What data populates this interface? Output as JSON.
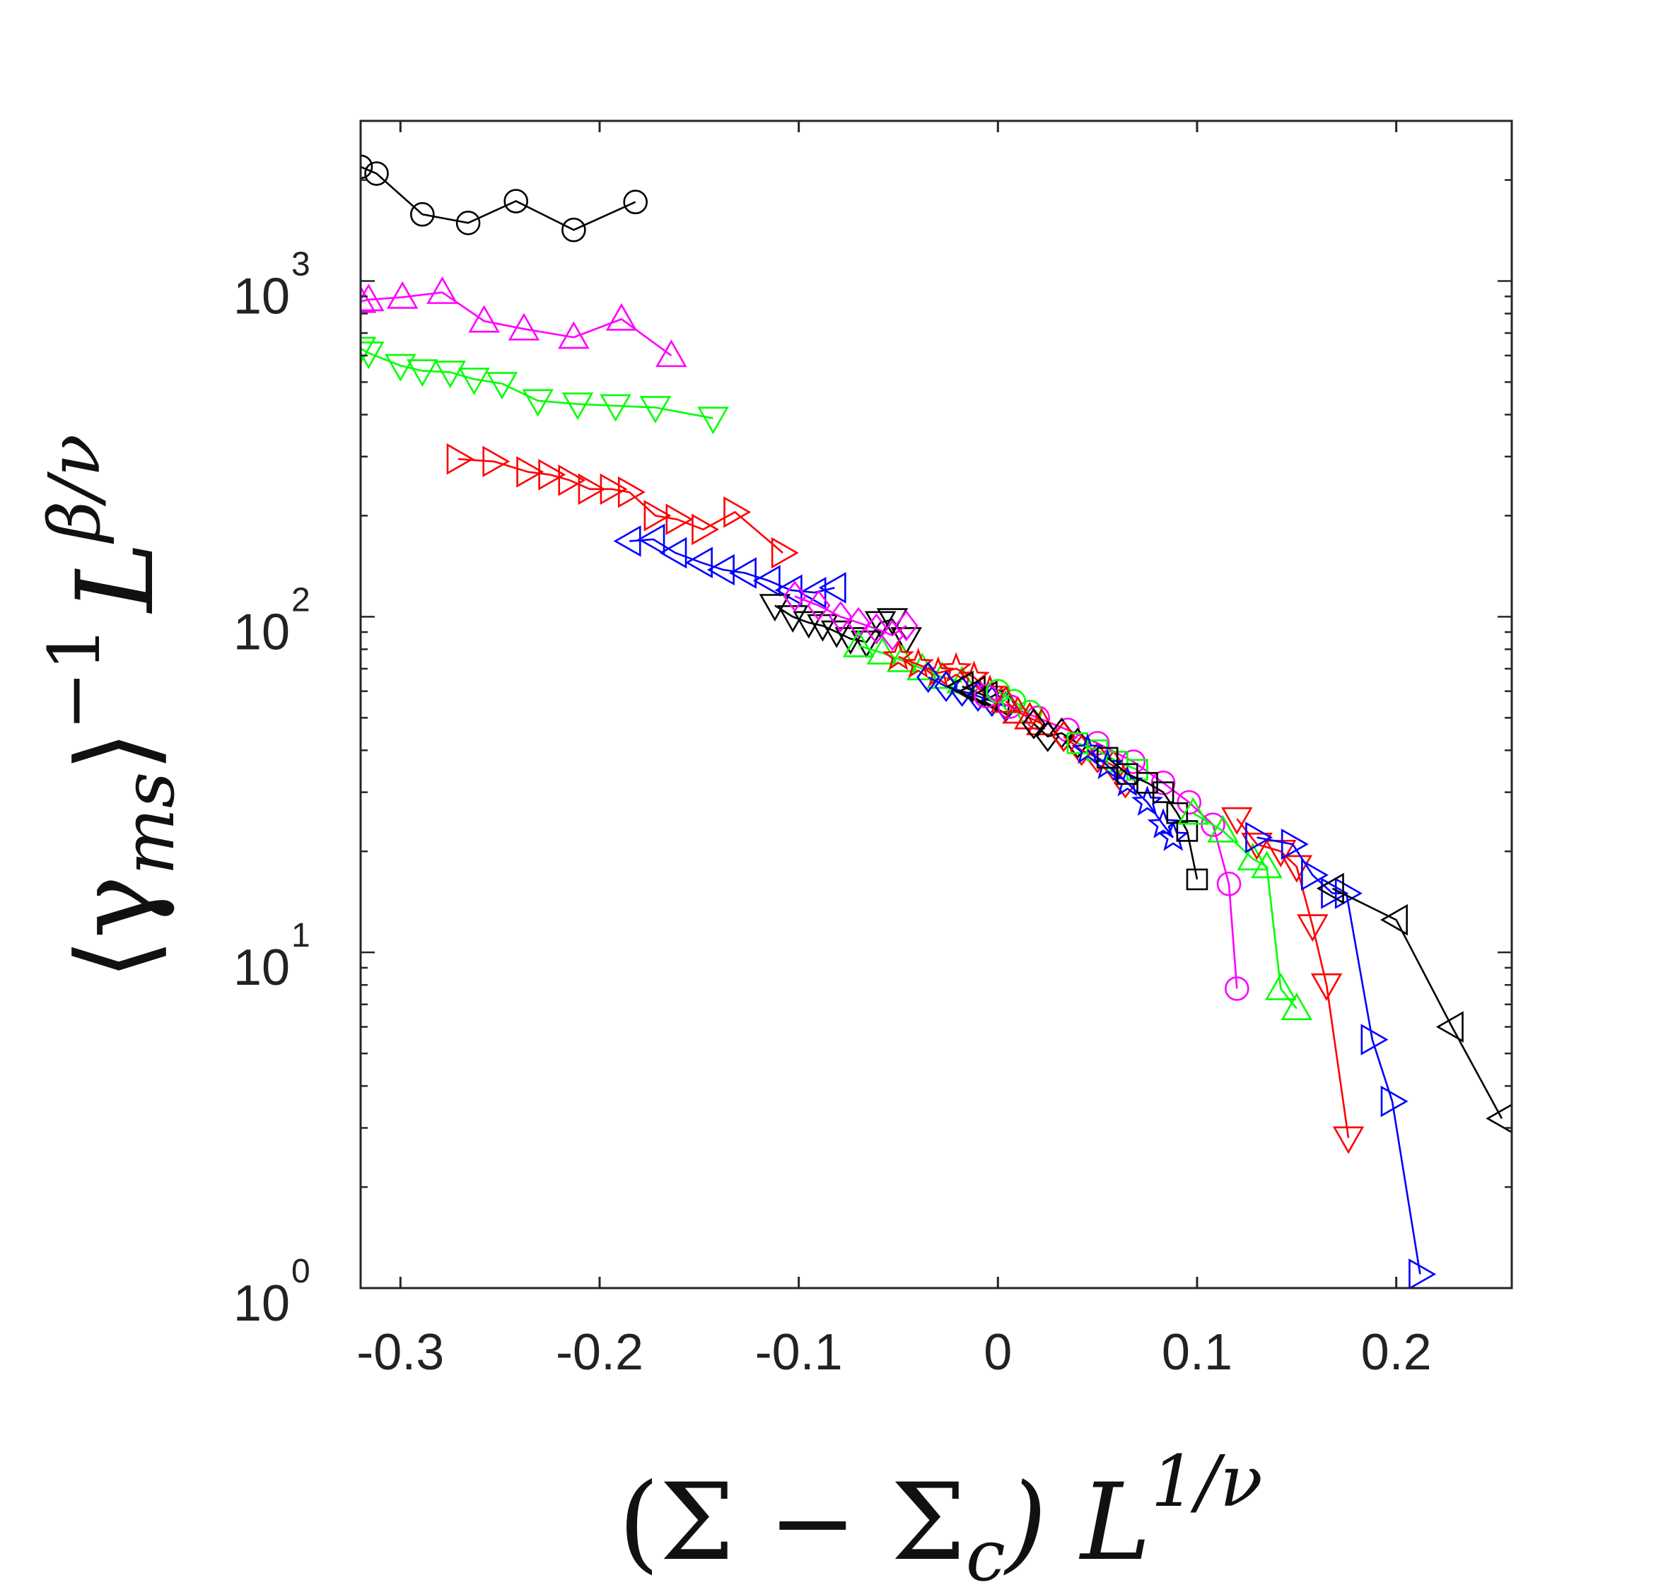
{
  "chart_data": {
    "type": "line",
    "title": "",
    "xlabel": {
      "main": "(Σ − Σ",
      "sub": "c",
      "close": ") L",
      "sup": "1/ν"
    },
    "ylabel": {
      "open": "⟨γ",
      "sub": "ms",
      "close": "⟩",
      "sup1": "−1",
      "L": "L",
      "sup2": "β/ν"
    },
    "xlim": [
      -0.32,
      0.258
    ],
    "ylim": [
      1,
      3000
    ],
    "yscale": "log",
    "grid": false,
    "legend": "none",
    "x_ticks": [
      -0.3,
      -0.2,
      -0.1,
      0,
      0.1,
      0.2
    ],
    "x_tick_labels": [
      "-0.3",
      "-0.2",
      "-0.1",
      "0",
      "0.1",
      "0.2"
    ],
    "y_ticks": [
      1,
      10,
      100,
      1000
    ],
    "y_tick_labels": [
      {
        "base": "10",
        "exp": "0"
      },
      {
        "base": "10",
        "exp": "1"
      },
      {
        "base": "10",
        "exp": "2"
      },
      {
        "base": "10",
        "exp": "3"
      }
    ],
    "series": [
      {
        "name": "black-circle",
        "color": "#000000",
        "marker": "circle",
        "x": [
          -0.32,
          -0.312,
          -0.289,
          -0.266,
          -0.242,
          -0.213,
          -0.182
        ],
        "y": [
          2190,
          2090,
          1580,
          1490,
          1730,
          1420,
          1720
        ]
      },
      {
        "name": "magenta-triangle-up",
        "color": "#ff00ff",
        "marker": "triangle-up",
        "x": [
          -0.32,
          -0.316,
          -0.299,
          -0.279,
          -0.258,
          -0.238,
          -0.213,
          -0.189,
          -0.164
        ],
        "y": [
          870,
          880,
          895,
          925,
          760,
          720,
          680,
          770,
          600
        ]
      },
      {
        "name": "green-triangle-down",
        "color": "#00ff00",
        "marker": "triangle-down",
        "x": [
          -0.32,
          -0.316,
          -0.3,
          -0.289,
          -0.275,
          -0.263,
          -0.249,
          -0.231,
          -0.211,
          -0.192,
          -0.172,
          -0.143
        ],
        "y": [
          630,
          610,
          560,
          540,
          535,
          510,
          495,
          440,
          430,
          425,
          420,
          390
        ]
      },
      {
        "name": "red-triangle-right",
        "color": "#ff0000",
        "marker": "triangle-right",
        "x": [
          -0.271,
          -0.253,
          -0.236,
          -0.225,
          -0.215,
          -0.205,
          -0.194,
          -0.185,
          -0.172,
          -0.161,
          -0.148,
          -0.132,
          -0.108
        ],
        "y": [
          295,
          290,
          270,
          265,
          255,
          240,
          240,
          235,
          200,
          195,
          182,
          205,
          155
        ]
      },
      {
        "name": "blue-triangle-left",
        "color": "#0000ff",
        "marker": "triangle-left",
        "x": [
          -0.185,
          -0.173,
          -0.162,
          -0.149,
          -0.138,
          -0.127,
          -0.115,
          -0.104,
          -0.092,
          -0.082
        ],
        "y": [
          168,
          170,
          155,
          145,
          138,
          135,
          128,
          120,
          118,
          122
        ]
      },
      {
        "name": "black-triangle-down",
        "color": "#000000",
        "marker": "triangle-down",
        "x": [
          -0.112,
          -0.103,
          -0.095,
          -0.088,
          -0.081,
          -0.074,
          -0.066,
          -0.059,
          -0.053,
          -0.046
        ],
        "y": [
          108,
          100,
          96,
          94,
          90,
          86,
          84,
          96,
          98,
          86
        ]
      },
      {
        "name": "magenta-diamond",
        "color": "#ff00ff",
        "marker": "diamond",
        "x": [
          -0.102,
          -0.09,
          -0.079,
          -0.07,
          -0.061,
          -0.053,
          -0.046
        ],
        "y": [
          115,
          108,
          100,
          96,
          92,
          88,
          94
        ]
      },
      {
        "name": "green-triangle-up",
        "color": "#00ff00",
        "marker": "triangle-up",
        "x": [
          -0.07,
          -0.058,
          -0.048,
          -0.038,
          -0.028,
          -0.018
        ],
        "y": [
          82,
          78,
          74,
          70,
          66,
          64
        ]
      },
      {
        "name": "red-pentagram",
        "color": "#ff0000",
        "marker": "star",
        "x": [
          -0.05,
          -0.04,
          -0.03,
          -0.021,
          -0.012,
          -0.004
        ],
        "y": [
          76,
          72,
          68,
          70,
          66,
          60
        ]
      },
      {
        "name": "blue-diamond",
        "color": "#0000ff",
        "marker": "diamond",
        "x": [
          -0.035,
          -0.026,
          -0.018,
          -0.01,
          -0.003,
          0.004
        ],
        "y": [
          66,
          62,
          60,
          58,
          56,
          54
        ]
      },
      {
        "name": "black-left-cluster",
        "color": "#000000",
        "marker": "triangle-left",
        "x": [
          -0.018,
          -0.012,
          -0.006,
          0.0
        ],
        "y": [
          62,
          60,
          58,
          56
        ]
      },
      {
        "name": "magenta-circle",
        "color": "#ff00ff",
        "marker": "circle",
        "x": [
          -0.006,
          0.006,
          0.02,
          0.035,
          0.05,
          0.068,
          0.083,
          0.096,
          0.108,
          0.116,
          0.12
        ],
        "y": [
          58,
          54,
          50,
          46,
          42,
          37,
          32,
          28,
          24,
          16,
          7.8
        ]
      },
      {
        "name": "green-circle",
        "color": "#00ff00",
        "marker": "circle",
        "x": [
          0.0,
          0.008,
          0.016
        ],
        "y": [
          60,
          56,
          52
        ]
      },
      {
        "name": "red-triangle-up",
        "color": "#ff0000",
        "marker": "triangle-up",
        "x": [
          0.004,
          0.01,
          0.016,
          0.022
        ],
        "y": [
          56,
          52,
          50,
          48
        ]
      },
      {
        "name": "black-diamond",
        "color": "#000000",
        "marker": "diamond",
        "x": [
          0.018,
          0.025,
          0.032,
          0.04
        ],
        "y": [
          48,
          44,
          45,
          42
        ]
      },
      {
        "name": "red-diamond",
        "color": "#ff0000",
        "marker": "diamond",
        "x": [
          0.033,
          0.042,
          0.05,
          0.058,
          0.064
        ],
        "y": [
          44,
          40,
          38,
          36,
          32
        ]
      },
      {
        "name": "green-square",
        "color": "#00ff00",
        "marker": "square",
        "x": [
          0.04,
          0.05,
          0.06,
          0.07
        ],
        "y": [
          42,
          40,
          37,
          35
        ]
      },
      {
        "name": "blue-star",
        "color": "#0000ff",
        "marker": "star",
        "x": [
          0.045,
          0.055,
          0.065,
          0.075,
          0.083,
          0.088
        ],
        "y": [
          40,
          36,
          32,
          28,
          24,
          22
        ]
      },
      {
        "name": "black-square",
        "color": "#000000",
        "marker": "square",
        "x": [
          0.055,
          0.065,
          0.075,
          0.083,
          0.09,
          0.095,
          0.1
        ],
        "y": [
          38,
          34,
          32,
          30,
          26,
          23,
          16.5
        ]
      },
      {
        "name": "green-triangle-up-2",
        "color": "#00ff00",
        "marker": "triangle-up",
        "x": [
          0.098,
          0.113,
          0.128,
          0.135,
          0.142,
          0.15
        ],
        "y": [
          26,
          23,
          19,
          18,
          7.8,
          6.8
        ]
      },
      {
        "name": "red-triangle-down",
        "color": "#ff0000",
        "marker": "triangle-down",
        "x": [
          0.12,
          0.13,
          0.142,
          0.15,
          0.158,
          0.165,
          0.176
        ],
        "y": [
          25,
          21,
          20,
          18,
          12,
          8,
          2.8
        ]
      },
      {
        "name": "blue-triangle-right",
        "color": "#0000ff",
        "marker": "triangle-right",
        "x": [
          0.13,
          0.148,
          0.158,
          0.168,
          0.175,
          0.188,
          0.198,
          0.212
        ],
        "y": [
          22,
          21,
          17,
          15,
          15,
          5.5,
          3.6,
          1.1
        ]
      },
      {
        "name": "black-triangle-left",
        "color": "#000000",
        "marker": "triangle-left",
        "x": [
          0.168,
          0.2,
          0.228,
          0.253
        ],
        "y": [
          15.5,
          12.5,
          6,
          3.2
        ]
      }
    ]
  }
}
